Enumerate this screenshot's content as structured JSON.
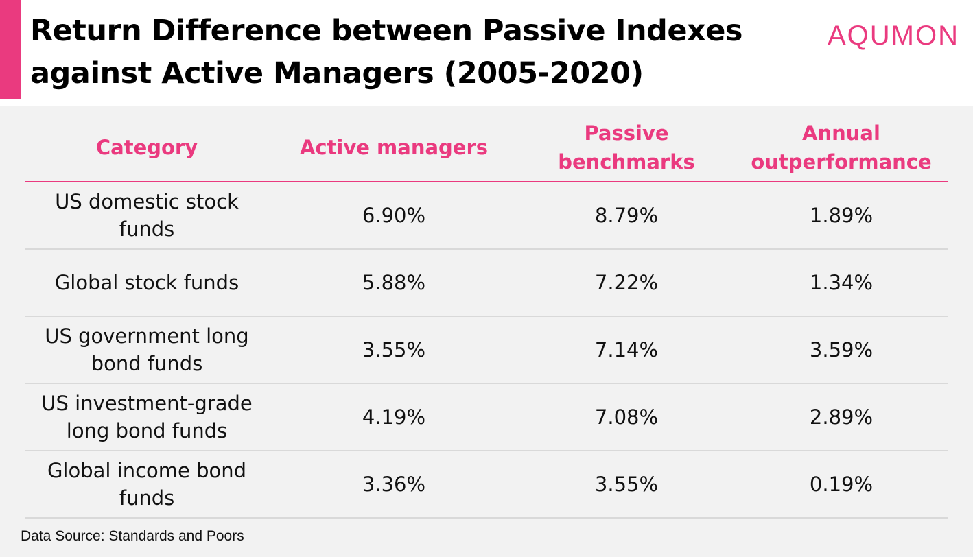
{
  "title": "Return Difference between Passive Indexes\nagainst Active Managers (2005-2020)",
  "brand": "AQUMON",
  "source": "Data Source: Standards and Poors",
  "colors": {
    "accent": "#ea3a7f",
    "table_background": "#f2f2f2",
    "row_divider": "#d9d9d9"
  },
  "chart_data": {
    "type": "table",
    "columns": [
      "Category",
      "Active managers",
      "Passive benchmarks",
      "Annual outperformance"
    ],
    "rows": [
      [
        "US domestic stock funds",
        "6.90%",
        "8.79%",
        "1.89%"
      ],
      [
        "Global stock funds",
        "5.88%",
        "7.22%",
        "1.34%"
      ],
      [
        "US government long bond funds",
        "3.55%",
        "7.14%",
        "3.59%"
      ],
      [
        "US investment-grade long bond funds",
        "4.19%",
        "7.08%",
        "2.89%"
      ],
      [
        "Global income bond funds",
        "3.36%",
        "3.55%",
        "0.19%"
      ]
    ]
  }
}
